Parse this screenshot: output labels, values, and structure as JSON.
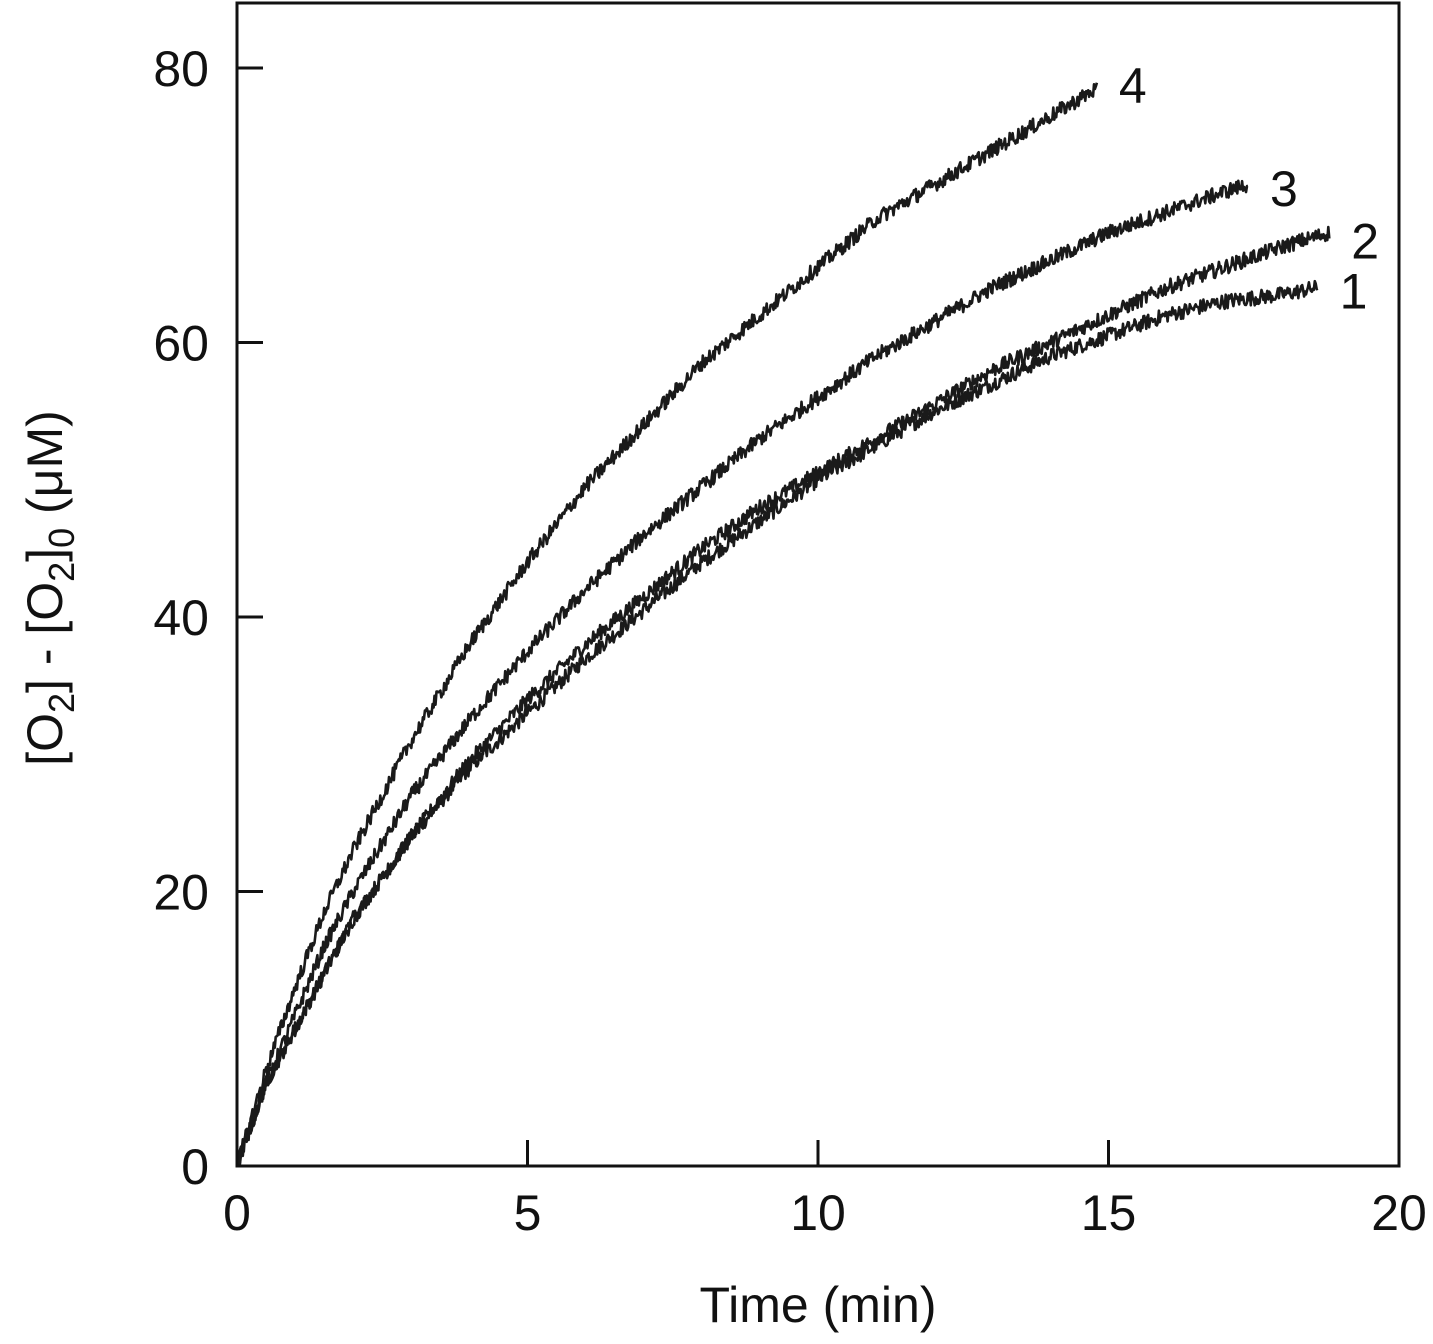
{
  "chart_data": {
    "type": "line",
    "title": "",
    "xlabel": "Time (min)",
    "ylabel": {
      "parts": [
        {
          "t": "[O"
        },
        {
          "t": "2",
          "sub": true
        },
        {
          "t": "] - [O"
        },
        {
          "t": "2",
          "sub": true
        },
        {
          "t": "]"
        },
        {
          "t": "0",
          "sub": true
        },
        {
          "t": " (μM)"
        }
      ]
    },
    "xlim": [
      0,
      20
    ],
    "ylim": [
      0,
      85
    ],
    "xticks": [
      0,
      5,
      10,
      15,
      20
    ],
    "yticks": [
      0,
      20,
      40,
      60,
      80
    ],
    "xtick_labels": [
      "0",
      "5",
      "10",
      "15",
      "20"
    ],
    "ytick_labels": [
      "0",
      "20",
      "40",
      "60",
      "80"
    ],
    "grid": false,
    "legend": "none",
    "line_color": "#1a1a1a",
    "series": [
      {
        "label": "1",
        "x": [
          0,
          0.5,
          1,
          1.5,
          2,
          2.5,
          3,
          4,
          5,
          6,
          7,
          8,
          9,
          10,
          11,
          12,
          13,
          14,
          15,
          16,
          17,
          18,
          18.6
        ],
        "y": [
          0,
          6,
          10,
          14,
          18,
          21,
          24,
          29,
          33,
          37,
          40.5,
          44,
          47,
          50,
          52.5,
          55,
          57,
          59,
          60.5,
          62,
          63,
          63.5,
          64
        ]
      },
      {
        "label": "2",
        "x": [
          0,
          0.5,
          1,
          1.5,
          2,
          2.5,
          3,
          4,
          5,
          6,
          7,
          8,
          9,
          10,
          11,
          12,
          13,
          14,
          15,
          16,
          17,
          18,
          18.8
        ],
        "y": [
          0,
          6,
          10,
          14,
          18,
          21,
          24,
          29.5,
          34,
          38,
          41.5,
          45,
          48,
          50.5,
          53,
          55.5,
          58,
          60,
          62,
          64,
          65.5,
          67,
          68
        ]
      },
      {
        "label": "3",
        "x": [
          0,
          0.5,
          1,
          1.5,
          2,
          2.5,
          3,
          4,
          5,
          6,
          7,
          8,
          9,
          10,
          11,
          12,
          13,
          14,
          15,
          16,
          17,
          17.4
        ],
        "y": [
          0,
          6,
          11,
          16,
          20,
          23.5,
          27,
          32.5,
          37.5,
          42,
          46,
          49.5,
          53,
          56,
          59,
          61.5,
          64,
          66,
          68,
          69.5,
          71,
          71.5
        ]
      },
      {
        "label": "4",
        "x": [
          0,
          0.5,
          1,
          1.5,
          2,
          2.5,
          3,
          3.5,
          4,
          5,
          6,
          7,
          8,
          9,
          10,
          11,
          12,
          13,
          14,
          14.8
        ],
        "y": [
          0,
          7,
          13,
          18.5,
          23,
          27,
          31,
          34.5,
          38,
          44,
          49.5,
          54,
          58.5,
          62,
          65.5,
          69,
          71.5,
          74,
          76.5,
          78.5
        ]
      }
    ]
  }
}
